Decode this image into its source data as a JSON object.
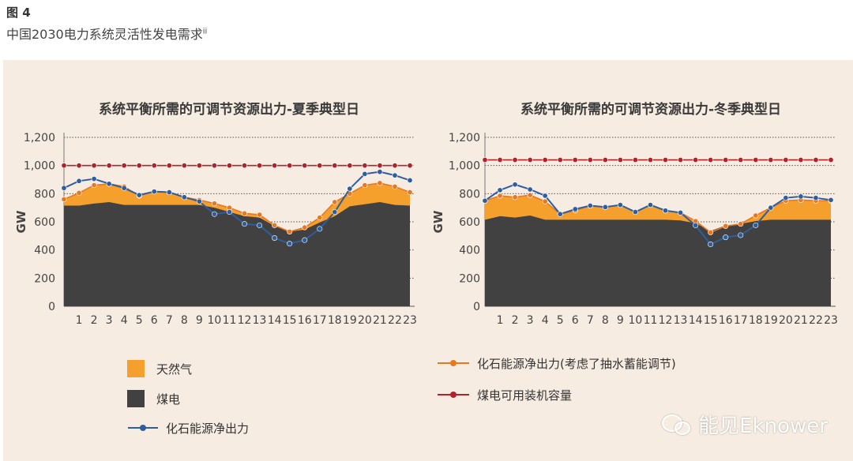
{
  "figure": {
    "label": "图 4",
    "title": "中国2030电力系统灵活性发电需求",
    "title_sup": "ii"
  },
  "colors": {
    "gas": "#f5a02c",
    "coal": "#414141",
    "fossil_net": "#2f5e9e",
    "fossil_net_pumped": "#e87722",
    "coal_capacity": "#b0232a",
    "axis_text": "#444444",
    "gridline": "#555555"
  },
  "legend": {
    "gas": "天然气",
    "coal": "煤电",
    "fossil_net": "化石能源净出力",
    "fossil_net_pumped": "化石能源净出力(考虑了抽水蓄能调节)",
    "coal_capacity": "煤电可用装机容量"
  },
  "watermark": {
    "text": "能见Eknower",
    "icon": "wechat-icon"
  },
  "chart_data": [
    {
      "type": "area",
      "title": "系统平衡所需的可调节资源出力-夏季典型日",
      "ylabel": "GW",
      "ylim": [
        0,
        1200
      ],
      "yticks": [
        0,
        200,
        400,
        600,
        800,
        1000,
        1200
      ],
      "ytick_labels": [
        "0",
        "200",
        "400",
        "600",
        "800",
        "1,000",
        "1,200"
      ],
      "x": [
        0,
        1,
        2,
        3,
        4,
        5,
        6,
        7,
        8,
        9,
        10,
        11,
        12,
        13,
        14,
        15,
        16,
        17,
        18,
        19,
        20,
        21,
        22,
        23
      ],
      "xtick_labels": [
        "1",
        "2",
        "3",
        "4",
        "5",
        "6",
        "7",
        "8",
        "9",
        "10",
        "11",
        "12",
        "13",
        "14",
        "15",
        "16",
        "17",
        "18",
        "19",
        "20",
        "21",
        "22",
        "23"
      ],
      "series": [
        {
          "key": "coal",
          "kind": "area",
          "values": [
            715,
            715,
            730,
            740,
            720,
            720,
            720,
            720,
            720,
            720,
            700,
            670,
            640,
            630,
            570,
            530,
            545,
            595,
            640,
            710,
            725,
            740,
            720,
            715
          ]
        },
        {
          "key": "gas",
          "kind": "area-stack-top",
          "values": [
            760,
            805,
            860,
            870,
            850,
            785,
            815,
            810,
            775,
            755,
            730,
            700,
            660,
            650,
            575,
            530,
            560,
            630,
            740,
            800,
            860,
            875,
            850,
            810
          ]
        },
        {
          "key": "fossil_net_pumped",
          "kind": "line-marker",
          "values": [
            760,
            805,
            860,
            870,
            850,
            785,
            815,
            810,
            775,
            755,
            730,
            700,
            660,
            650,
            575,
            530,
            560,
            630,
            740,
            800,
            860,
            875,
            850,
            810
          ]
        },
        {
          "key": "fossil_net",
          "kind": "line-marker",
          "values": [
            840,
            890,
            905,
            870,
            840,
            790,
            815,
            810,
            775,
            745,
            655,
            670,
            585,
            575,
            485,
            445,
            470,
            550,
            670,
            835,
            940,
            955,
            930,
            895
          ]
        },
        {
          "key": "coal_capacity",
          "kind": "line-marker",
          "values": [
            1000,
            1000,
            1000,
            1000,
            1000,
            1000,
            1000,
            1000,
            1000,
            1000,
            1000,
            1000,
            1000,
            1000,
            1000,
            1000,
            1000,
            1000,
            1000,
            1000,
            1000,
            1000,
            1000,
            1000
          ]
        }
      ]
    },
    {
      "type": "area",
      "title": "系统平衡所需的可调节资源出力-冬季典型日",
      "ylabel": "GW",
      "ylim": [
        0,
        1200
      ],
      "yticks": [
        0,
        200,
        400,
        600,
        800,
        1000,
        1200
      ],
      "ytick_labels": [
        "0",
        "200",
        "400",
        "600",
        "800",
        "1,000",
        "1,200"
      ],
      "x": [
        0,
        1,
        2,
        3,
        4,
        5,
        6,
        7,
        8,
        9,
        10,
        11,
        12,
        13,
        14,
        15,
        16,
        17,
        18,
        19,
        20,
        21,
        22,
        23
      ],
      "xtick_labels": [
        "1",
        "2",
        "3",
        "4",
        "5",
        "6",
        "7",
        "8",
        "9",
        "10",
        "11",
        "12",
        "13",
        "14",
        "15",
        "16",
        "17",
        "18",
        "19",
        "20",
        "21",
        "22",
        "23"
      ],
      "series": [
        {
          "key": "coal",
          "kind": "area",
          "values": [
            615,
            640,
            630,
            645,
            615,
            615,
            615,
            615,
            615,
            615,
            615,
            615,
            615,
            610,
            590,
            535,
            575,
            585,
            605,
            615,
            615,
            615,
            615,
            615
          ]
        },
        {
          "key": "gas",
          "kind": "area-stack-top",
          "values": [
            750,
            785,
            775,
            790,
            745,
            655,
            680,
            715,
            705,
            720,
            670,
            720,
            680,
            665,
            605,
            525,
            570,
            585,
            645,
            700,
            750,
            755,
            750,
            750
          ]
        },
        {
          "key": "fossil_net_pumped",
          "kind": "line-marker",
          "values": [
            750,
            785,
            775,
            790,
            745,
            655,
            680,
            715,
            705,
            720,
            670,
            720,
            680,
            665,
            605,
            525,
            570,
            585,
            645,
            700,
            750,
            755,
            750,
            750
          ]
        },
        {
          "key": "fossil_net",
          "kind": "line-marker",
          "values": [
            750,
            825,
            865,
            830,
            785,
            655,
            690,
            715,
            705,
            720,
            670,
            720,
            680,
            665,
            575,
            440,
            490,
            505,
            575,
            700,
            770,
            780,
            770,
            755
          ]
        },
        {
          "key": "coal_capacity",
          "kind": "line-marker",
          "values": [
            1040,
            1040,
            1040,
            1040,
            1040,
            1040,
            1040,
            1040,
            1040,
            1040,
            1040,
            1040,
            1040,
            1040,
            1040,
            1040,
            1040,
            1040,
            1040,
            1040,
            1040,
            1040,
            1040,
            1040
          ]
        }
      ]
    }
  ]
}
